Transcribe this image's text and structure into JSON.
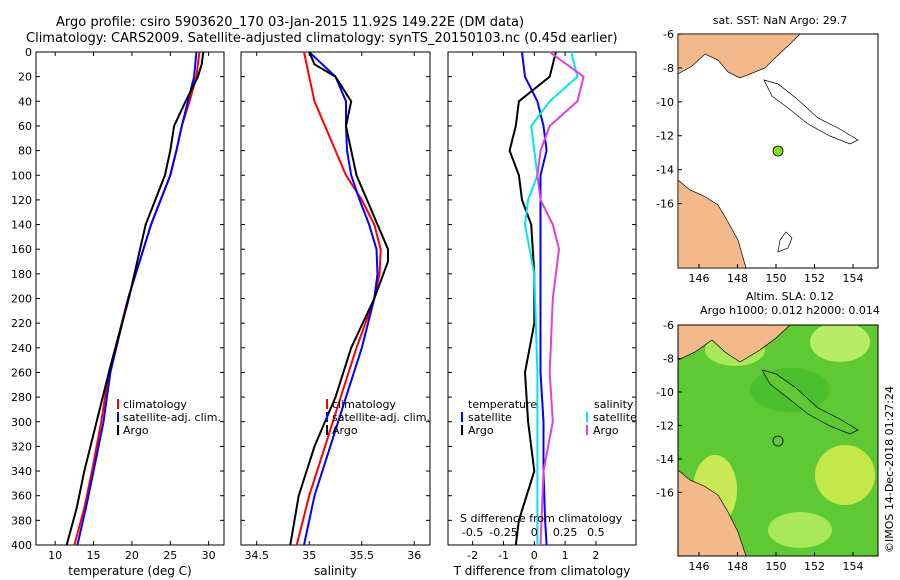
{
  "header": {
    "line1": "Argo profile: csiro 5903620_170 03-Jan-2015 11.92S 149.22E (DM data)",
    "line2": "Climatology: CARS2009. Satellite-adjusted climatology: synTS_20150103.nc (0.45d earlier)"
  },
  "colors": {
    "climatology": "#ff0000",
    "satellite": "#0000ff",
    "argo": "#000000",
    "sat_t": "#00e5ee",
    "sat_s": "#e040e0",
    "land": "#f4b98a",
    "sea": "#ffffff",
    "marker": "#88dd22"
  },
  "chart_data": [
    {
      "type": "line",
      "id": "temperature",
      "xlabel": "temperature (deg C)",
      "xlim": [
        7.5,
        32
      ],
      "xticks": [
        10,
        15,
        20,
        25,
        30
      ],
      "ylim": [
        400,
        0
      ],
      "yticks": [
        0,
        20,
        40,
        60,
        80,
        100,
        120,
        140,
        160,
        180,
        200,
        220,
        240,
        260,
        280,
        300,
        320,
        340,
        360,
        380,
        400
      ],
      "legend": [
        "climatology",
        "satellite-adj. clim.",
        "Argo"
      ],
      "series": [
        {
          "name": "climatology",
          "color": "#ff0000",
          "depth": [
            0,
            20,
            40,
            60,
            80,
            100,
            140,
            200,
            260,
            300,
            340,
            370,
            400
          ],
          "x": [
            28.8,
            28.4,
            27.5,
            26.5,
            25.8,
            25.0,
            22.5,
            19.5,
            17.0,
            16.0,
            14.8,
            13.8,
            12.5
          ]
        },
        {
          "name": "satellite-adj. clim.",
          "color": "#0000ff",
          "depth": [
            0,
            20,
            40,
            60,
            80,
            100,
            140,
            200,
            260,
            300,
            340,
            370,
            400
          ],
          "x": [
            28.4,
            28.1,
            27.3,
            26.5,
            25.8,
            25.0,
            22.5,
            19.5,
            17.2,
            16.3,
            15.0,
            14.0,
            12.9
          ]
        },
        {
          "name": "Argo",
          "color": "#000000",
          "depth": [
            0,
            10,
            20,
            40,
            60,
            80,
            100,
            140,
            200,
            260,
            300,
            340,
            370,
            400
          ],
          "x": [
            29.3,
            29.1,
            28.6,
            27.0,
            25.5,
            25.0,
            24.3,
            21.8,
            19.6,
            17.0,
            15.4,
            13.8,
            12.8,
            11.5
          ]
        }
      ]
    },
    {
      "type": "line",
      "id": "salinity",
      "xlabel": "salinity",
      "xlim": [
        34.35,
        36.15
      ],
      "xticks": [
        34.5,
        35,
        35.5,
        36
      ],
      "ylim": [
        400,
        0
      ],
      "legend": [
        "climatology",
        "satellite-adj. clim.",
        "Argo"
      ],
      "series": [
        {
          "name": "climatology",
          "color": "#ff0000",
          "depth": [
            0,
            20,
            40,
            60,
            80,
            100,
            120,
            140,
            160,
            180,
            200,
            240,
            280,
            320,
            360,
            400
          ],
          "x": [
            34.95,
            35.0,
            35.05,
            35.15,
            35.25,
            35.35,
            35.5,
            35.62,
            35.68,
            35.67,
            35.62,
            35.45,
            35.3,
            35.15,
            35.0,
            34.88
          ]
        },
        {
          "name": "satellite-adj. clim.",
          "color": "#0000ff",
          "depth": [
            0,
            20,
            40,
            60,
            80,
            100,
            120,
            140,
            160,
            180,
            200,
            240,
            280,
            320,
            360,
            400
          ],
          "x": [
            35.0,
            35.25,
            35.35,
            35.35,
            35.36,
            35.4,
            35.48,
            35.57,
            35.64,
            35.65,
            35.62,
            35.5,
            35.35,
            35.2,
            35.05,
            34.95
          ]
        },
        {
          "name": "Argo",
          "color": "#000000",
          "depth": [
            0,
            10,
            20,
            40,
            60,
            80,
            100,
            120,
            140,
            160,
            170,
            200,
            240,
            280,
            320,
            360,
            400
          ],
          "x": [
            35.0,
            35.05,
            35.25,
            35.4,
            35.35,
            35.4,
            35.45,
            35.55,
            35.65,
            35.75,
            35.75,
            35.62,
            35.4,
            35.25,
            35.05,
            34.9,
            34.82
          ]
        }
      ]
    },
    {
      "type": "line",
      "id": "difference",
      "xlabel": "T difference from climatology",
      "top_axis_label": "S difference from climatology",
      "xlim": [
        -2.8,
        3.3
      ],
      "xticks": [
        -2,
        -1,
        0,
        1,
        2
      ],
      "top_ticks": [
        "-0.5",
        "-0.25",
        "0",
        "0.25",
        "0.5"
      ],
      "ylim": [
        400,
        0
      ],
      "legend_left_title": "temperature",
      "legend_left": [
        "satellite",
        "Argo"
      ],
      "legend_right_title": "salinity",
      "legend_right": [
        "satellite",
        "Argo"
      ],
      "series": [
        {
          "name": "T satellite",
          "color": "#0000ff",
          "depth": [
            0,
            20,
            40,
            60,
            80,
            100,
            140,
            200,
            260,
            300,
            340,
            380,
            400
          ],
          "x": [
            -0.4,
            -0.3,
            0.1,
            0.3,
            0.4,
            0.2,
            0.2,
            0.2,
            0.2,
            0.3,
            0.3,
            0.35,
            0.4
          ]
        },
        {
          "name": "T Argo",
          "color": "#000000",
          "depth": [
            0,
            20,
            40,
            60,
            80,
            100,
            120,
            140,
            180,
            220,
            260,
            300,
            340,
            380,
            400
          ],
          "x": [
            0.7,
            0.5,
            -0.5,
            -0.6,
            -0.8,
            -0.5,
            -0.4,
            -0.1,
            0.0,
            0.0,
            -0.3,
            -0.2,
            0.0,
            -0.5,
            -0.6
          ]
        },
        {
          "name": "S satellite",
          "color": "#00e5ee",
          "depth": [
            0,
            20,
            40,
            60,
            80,
            100,
            120,
            140,
            180,
            220,
            260,
            300,
            340,
            400
          ],
          "x": [
            1.2,
            1.4,
            0.5,
            -0.1,
            0.0,
            0.1,
            -0.2,
            -0.3,
            0.0,
            0.05,
            0.1,
            0.1,
            0.1,
            0.1
          ]
        },
        {
          "name": "S Argo",
          "color": "#e040e0",
          "depth": [
            0,
            20,
            40,
            60,
            80,
            100,
            120,
            140,
            160,
            200,
            260,
            300,
            340,
            400
          ],
          "x": [
            0.5,
            1.6,
            1.4,
            0.5,
            0.2,
            0.1,
            0.2,
            0.6,
            0.8,
            0.6,
            0.5,
            0.6,
            0.3,
            0.2
          ]
        }
      ]
    }
  ],
  "map_top": {
    "title": "sat. SST: NaN Argo: 29.7",
    "lon_ticks": [
      "146",
      "148",
      "150",
      "152",
      "154"
    ],
    "lat_ticks": [
      "-6",
      "-8",
      "-10",
      "-12",
      "-14",
      "-16"
    ]
  },
  "map_bottom": {
    "title1": "Altim. SLA: 0.12",
    "title2": "Argo h1000: 0.012 h2000: 0.014",
    "lon_ticks": [
      "146",
      "148",
      "150",
      "152",
      "154"
    ],
    "lat_ticks": [
      "-6",
      "-8",
      "-10",
      "-12",
      "-14",
      "-16"
    ]
  },
  "watermark": "©IMOS 14-Dec-2018 01:27:24"
}
